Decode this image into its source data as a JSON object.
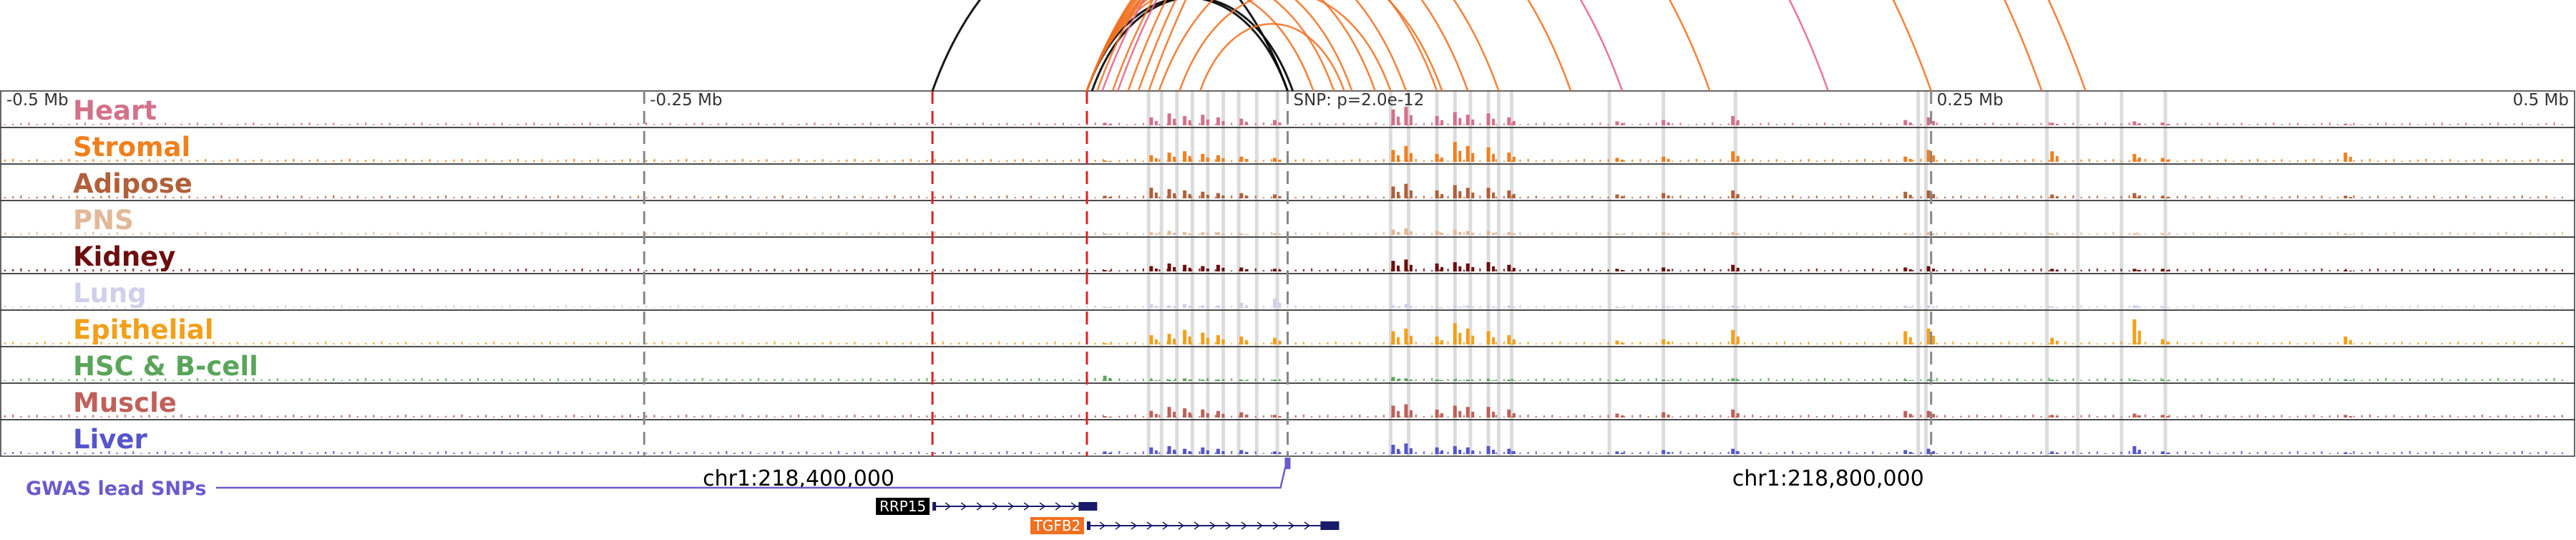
{
  "chart_data": {
    "type": "genome-track",
    "title": "",
    "xlabel": "",
    "ylabel": "",
    "region": {
      "chromosome": "chr1",
      "start": 218090000,
      "end": 219090000
    },
    "x_ticks": [
      {
        "label": "-0.5 Mb",
        "position": 218090000
      },
      {
        "label": "-0.25 Mb",
        "position": 218340000
      },
      {
        "label": "0.25 Mb",
        "position": 218840000
      },
      {
        "label": "0.5 Mb",
        "position": 219090000
      }
    ],
    "coordinate_labels": [
      {
        "label": "chr1:218,400,000",
        "position": 218400000
      },
      {
        "label": "chr1:218,800,000",
        "position": 218800000
      }
    ],
    "snp": {
      "label": "SNP: p=2.0e-12",
      "position": 218590000
    },
    "gwas_label": "GWAS lead SNPs",
    "tracks": [
      {
        "name": "Heart",
        "color": "#d4718a"
      },
      {
        "name": "Stromal",
        "color": "#f0801e"
      },
      {
        "name": "Adipose",
        "color": "#b0603a"
      },
      {
        "name": "PNS",
        "color": "#e2b898"
      },
      {
        "name": "Kidney",
        "color": "#6b0f0f"
      },
      {
        "name": "Lung",
        "color": "#cfd0ea"
      },
      {
        "name": "Epithelial",
        "color": "#f2a01a"
      },
      {
        "name": "HSC & B-cell",
        "color": "#5aa55a"
      },
      {
        "name": "Muscle",
        "color": "#c0605a"
      },
      {
        "name": "Liver",
        "color": "#5555cc"
      }
    ],
    "peaks": [
      {
        "position": 218519000,
        "heights": [
          0.1,
          0.05,
          0.1,
          0.05,
          0.05,
          0.05,
          0.05,
          0.2,
          0.05,
          0.1
        ]
      },
      {
        "position": 218537000,
        "heights": [
          0.3,
          0.25,
          0.4,
          0.1,
          0.2,
          0.15,
          0.35,
          0.05,
          0.25,
          0.25
        ]
      },
      {
        "position": 218544000,
        "heights": [
          0.45,
          0.35,
          0.35,
          0.15,
          0.3,
          0.1,
          0.4,
          0.05,
          0.4,
          0.3
        ]
      },
      {
        "position": 218550000,
        "heights": [
          0.35,
          0.4,
          0.3,
          0.1,
          0.25,
          0.15,
          0.55,
          0.1,
          0.35,
          0.2
        ]
      },
      {
        "position": 218557000,
        "heights": [
          0.4,
          0.3,
          0.25,
          0.1,
          0.2,
          0.1,
          0.45,
          0.05,
          0.3,
          0.25
        ]
      },
      {
        "position": 218563000,
        "heights": [
          0.3,
          0.25,
          0.2,
          0.1,
          0.25,
          0.1,
          0.35,
          0.05,
          0.25,
          0.2
        ]
      },
      {
        "position": 218572000,
        "heights": [
          0.25,
          0.2,
          0.2,
          0.05,
          0.15,
          0.2,
          0.3,
          0.05,
          0.2,
          0.15
        ]
      },
      {
        "position": 218585000,
        "heights": [
          0.2,
          0.15,
          0.15,
          0.05,
          0.1,
          0.35,
          0.25,
          0.05,
          0.1,
          0.1
        ]
      },
      {
        "position": 218631000,
        "heights": [
          0.6,
          0.45,
          0.45,
          0.2,
          0.4,
          0.1,
          0.5,
          0.15,
          0.45,
          0.35
        ]
      },
      {
        "position": 218636000,
        "heights": [
          0.7,
          0.6,
          0.55,
          0.25,
          0.45,
          0.15,
          0.6,
          0.1,
          0.5,
          0.4
        ]
      },
      {
        "position": 218648000,
        "heights": [
          0.35,
          0.3,
          0.3,
          0.15,
          0.3,
          0.05,
          0.3,
          0.05,
          0.3,
          0.25
        ]
      },
      {
        "position": 218655000,
        "heights": [
          0.5,
          0.75,
          0.5,
          0.2,
          0.35,
          0.1,
          0.8,
          0.05,
          0.45,
          0.3
        ]
      },
      {
        "position": 218660000,
        "heights": [
          0.4,
          0.6,
          0.4,
          0.15,
          0.3,
          0.1,
          0.6,
          0.05,
          0.4,
          0.25
        ]
      },
      {
        "position": 218668000,
        "heights": [
          0.45,
          0.55,
          0.4,
          0.15,
          0.35,
          0.1,
          0.5,
          0.05,
          0.4,
          0.3
        ]
      },
      {
        "position": 218676000,
        "heights": [
          0.3,
          0.35,
          0.3,
          0.1,
          0.25,
          0.1,
          0.35,
          0.05,
          0.3,
          0.2
        ]
      },
      {
        "position": 218718000,
        "heights": [
          0.15,
          0.15,
          0.15,
          0.05,
          0.1,
          0.05,
          0.15,
          0.05,
          0.15,
          0.1
        ]
      },
      {
        "position": 218736000,
        "heights": [
          0.2,
          0.2,
          0.2,
          0.1,
          0.15,
          0.1,
          0.2,
          0.05,
          0.2,
          0.15
        ]
      },
      {
        "position": 218763000,
        "heights": [
          0.35,
          0.4,
          0.3,
          0.1,
          0.25,
          0.1,
          0.55,
          0.1,
          0.3,
          0.2
        ]
      },
      {
        "position": 218830000,
        "heights": [
          0.2,
          0.2,
          0.25,
          0.05,
          0.15,
          0.1,
          0.5,
          0.05,
          0.25,
          0.15
        ]
      },
      {
        "position": 218839000,
        "heights": [
          0.3,
          0.45,
          0.3,
          0.1,
          0.2,
          0.1,
          0.6,
          0.05,
          0.25,
          0.2
        ]
      },
      {
        "position": 218887000,
        "heights": [
          0.1,
          0.4,
          0.15,
          0.05,
          0.1,
          0.05,
          0.25,
          0.05,
          0.1,
          0.1
        ]
      },
      {
        "position": 218919000,
        "heights": [
          0.15,
          0.3,
          0.2,
          0.05,
          0.1,
          0.1,
          0.95,
          0.05,
          0.15,
          0.3
        ]
      },
      {
        "position": 218930000,
        "heights": [
          0.1,
          0.15,
          0.1,
          0.05,
          0.1,
          0.05,
          0.2,
          0.05,
          0.1,
          0.1
        ]
      },
      {
        "position": 219001000,
        "heights": [
          0.05,
          0.35,
          0.1,
          0.05,
          0.05,
          0.05,
          0.3,
          0.05,
          0.1,
          0.05
        ]
      }
    ],
    "highlight_lines": [
      218536000,
      218541000,
      218547000,
      218553000,
      218559000,
      218565000,
      218571000,
      218578000,
      218586000,
      218630000,
      218637000,
      218648000,
      218655000,
      218661000,
      218668000,
      218672000,
      218677000,
      218715000,
      218736000,
      218764000,
      218835000,
      218885000,
      218897000,
      218914000,
      218931000,
      218838000
    ],
    "dashed_lines": [
      {
        "position": 218340000,
        "color": "#888888"
      },
      {
        "position": 218452000,
        "color": "#dd2222"
      },
      {
        "position": 218512000,
        "color": "#dd2222"
      },
      {
        "position": 218590000,
        "color": "#888888"
      },
      {
        "position": 218840000,
        "color": "#888888"
      }
    ],
    "loops": [
      {
        "start": 218452000,
        "end": 218590000,
        "color": "#000000"
      },
      {
        "start": 218512000,
        "end": 218590000,
        "color": "#000000"
      },
      {
        "start": 218514000,
        "end": 218592000,
        "color": "#000000"
      },
      {
        "start": 218512000,
        "end": 218600000,
        "color": "#f07020"
      },
      {
        "start": 218512000,
        "end": 218608000,
        "color": "#f07020"
      },
      {
        "start": 218512000,
        "end": 218615000,
        "color": "#f07020"
      },
      {
        "start": 218512000,
        "end": 218624000,
        "color": "#f07020"
      },
      {
        "start": 218512000,
        "end": 218636000,
        "color": "#f07020"
      },
      {
        "start": 218512000,
        "end": 218648000,
        "color": "#f07020"
      },
      {
        "start": 218512000,
        "end": 218660000,
        "color": "#f07020"
      },
      {
        "start": 218512000,
        "end": 218672000,
        "color": "#f07020"
      },
      {
        "start": 218516000,
        "end": 218700000,
        "color": "#f07020"
      },
      {
        "start": 218518000,
        "end": 218720000,
        "color": "#e8608a"
      },
      {
        "start": 218522000,
        "end": 218754000,
        "color": "#f07020"
      },
      {
        "start": 218524000,
        "end": 218800000,
        "color": "#e8608a"
      },
      {
        "start": 218528000,
        "end": 218840000,
        "color": "#f07020"
      },
      {
        "start": 218532000,
        "end": 218883000,
        "color": "#f07020"
      },
      {
        "start": 218536000,
        "end": 218900000,
        "color": "#f07020"
      },
      {
        "start": 218540000,
        "end": 218650000,
        "color": "#f07020"
      },
      {
        "start": 218548000,
        "end": 218630000,
        "color": "#f07020"
      },
      {
        "start": 218556000,
        "end": 218612000,
        "color": "#f07020"
      }
    ],
    "genes": [
      {
        "name": "RRP15",
        "start": 218452000,
        "end": 218516000,
        "strand": "+",
        "label_color": "#000000"
      },
      {
        "name": "TGFB2",
        "start": 218512000,
        "end": 218610000,
        "strand": "+",
        "label_color": "#f07020"
      }
    ]
  }
}
